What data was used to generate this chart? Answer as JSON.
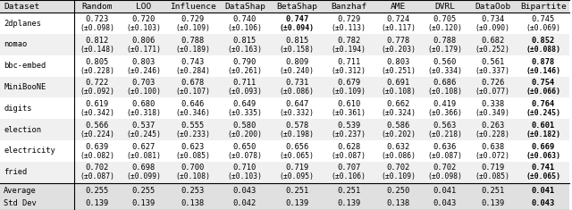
{
  "columns": [
    "Dataset",
    "Random",
    "LOO",
    "Influence",
    "DataShap",
    "BetaShap",
    "Banzhaf",
    "AME",
    "DVRL",
    "DataOob",
    "Bipartite"
  ],
  "rows": [
    {
      "name": "2dplanes",
      "vals": [
        "0.723",
        "0.720",
        "0.729",
        "0.740",
        "0.747",
        "0.729",
        "0.724",
        "0.705",
        "0.734",
        "0.745"
      ],
      "stds": [
        "±0.098",
        "±0.103",
        "±0.109",
        "±0.106",
        "±0.094",
        "±0.113",
        "±0.117",
        "±0.120",
        "±0.090",
        "±0.069"
      ],
      "bold": [
        false,
        false,
        false,
        false,
        true,
        false,
        false,
        false,
        false,
        false
      ]
    },
    {
      "name": "nomao",
      "vals": [
        "0.812",
        "0.806",
        "0.788",
        "0.815",
        "0.815",
        "0.782",
        "0.778",
        "0.788",
        "0.682",
        "0.852"
      ],
      "stds": [
        "±0.148",
        "±0.171",
        "±0.189",
        "±0.163",
        "±0.158",
        "±0.194",
        "±0.203",
        "±0.179",
        "±0.252",
        "±0.088"
      ],
      "bold": [
        false,
        false,
        false,
        false,
        false,
        false,
        false,
        false,
        false,
        true
      ]
    },
    {
      "name": "bbc-embed",
      "vals": [
        "0.805",
        "0.803",
        "0.743",
        "0.790",
        "0.809",
        "0.711",
        "0.803",
        "0.560",
        "0.561",
        "0.878"
      ],
      "stds": [
        "±0.228",
        "±0.246",
        "±0.284",
        "±0.261",
        "±0.240",
        "±0.312",
        "±0.251",
        "±0.334",
        "±0.337",
        "±0.146"
      ],
      "bold": [
        false,
        false,
        false,
        false,
        false,
        false,
        false,
        false,
        false,
        true
      ]
    },
    {
      "name": "MiniBooNE",
      "vals": [
        "0.722",
        "0.703",
        "0.678",
        "0.711",
        "0.731",
        "0.679",
        "0.691",
        "0.686",
        "0.726",
        "0.754"
      ],
      "stds": [
        "±0.092",
        "±0.100",
        "±0.107",
        "±0.093",
        "±0.086",
        "±0.109",
        "±0.108",
        "±0.108",
        "±0.077",
        "±0.066"
      ],
      "bold": [
        false,
        false,
        false,
        false,
        false,
        false,
        false,
        false,
        false,
        true
      ]
    },
    {
      "name": "digits",
      "vals": [
        "0.619",
        "0.680",
        "0.646",
        "0.649",
        "0.647",
        "0.610",
        "0.662",
        "0.419",
        "0.338",
        "0.764"
      ],
      "stds": [
        "±0.342",
        "±0.318",
        "±0.346",
        "±0.335",
        "±0.332",
        "±0.361",
        "±0.324",
        "±0.366",
        "±0.349",
        "±0.245"
      ],
      "bold": [
        false,
        false,
        false,
        false,
        false,
        false,
        false,
        false,
        false,
        true
      ]
    },
    {
      "name": "election",
      "vals": [
        "0.566",
        "0.537",
        "0.555",
        "0.580",
        "0.578",
        "0.539",
        "0.586",
        "0.563",
        "0.263",
        "0.601"
      ],
      "stds": [
        "±0.224",
        "±0.245",
        "±0.233",
        "±0.200",
        "±0.198",
        "±0.237",
        "±0.202",
        "±0.218",
        "±0.228",
        "±0.182"
      ],
      "bold": [
        false,
        false,
        false,
        false,
        false,
        false,
        false,
        false,
        false,
        true
      ]
    },
    {
      "name": "electricity",
      "vals": [
        "0.639",
        "0.627",
        "0.623",
        "0.650",
        "0.656",
        "0.628",
        "0.632",
        "0.636",
        "0.638",
        "0.669"
      ],
      "stds": [
        "±0.082",
        "±0.081",
        "±0.085",
        "±0.078",
        "±0.065",
        "±0.087",
        "±0.086",
        "±0.087",
        "±0.072",
        "±0.063"
      ],
      "bold": [
        false,
        false,
        false,
        false,
        false,
        false,
        false,
        false,
        false,
        true
      ]
    },
    {
      "name": "fried",
      "vals": [
        "0.702",
        "0.698",
        "0.700",
        "0.710",
        "0.719",
        "0.707",
        "0.702",
        "0.702",
        "0.719",
        "0.741"
      ],
      "stds": [
        "±0.087",
        "±0.099",
        "±0.108",
        "±0.103",
        "±0.095",
        "±0.106",
        "±0.109",
        "±0.098",
        "±0.085",
        "±0.065"
      ],
      "bold": [
        false,
        false,
        false,
        false,
        false,
        false,
        false,
        false,
        false,
        true
      ]
    }
  ],
  "avg_row": {
    "name": "Average",
    "vals": [
      "0.255",
      "0.255",
      "0.253",
      "0.043",
      "0.251",
      "0.251",
      "0.250",
      "0.041",
      "0.251",
      "0.041"
    ],
    "bold": [
      false,
      false,
      false,
      false,
      false,
      false,
      false,
      false,
      false,
      true
    ]
  },
  "std_row": {
    "name": "Std Dev",
    "vals": [
      "0.139",
      "0.139",
      "0.138",
      "0.042",
      "0.139",
      "0.139",
      "0.138",
      "0.043",
      "0.139",
      "0.043"
    ],
    "bold": [
      false,
      false,
      false,
      false,
      false,
      false,
      false,
      false,
      false,
      true
    ]
  },
  "header_bg": "#e0e0e0",
  "row_bg_alt": "#f0f0f0",
  "row_bg_main": "#ffffff",
  "text_color": "#000000",
  "font_size": 6.3,
  "header_font_size": 6.8
}
